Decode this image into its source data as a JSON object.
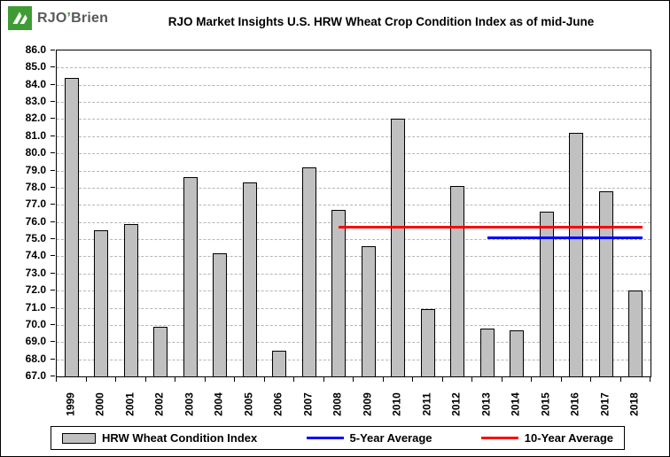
{
  "brand": {
    "primary": "RJO",
    "apostrophe": "’",
    "secondary": "Brien",
    "logo_icon": "rjo-green-square-icon",
    "accent_color": "#3f9c35"
  },
  "chart_data": {
    "type": "bar",
    "title": "RJO Market Insights U.S. HRW Wheat Crop Condition Index as of mid-June",
    "categories": [
      "1999",
      "2000",
      "2001",
      "2002",
      "2003",
      "2004",
      "2005",
      "2006",
      "2007",
      "2008",
      "2009",
      "2010",
      "2011",
      "2012",
      "2013",
      "2014",
      "2015",
      "2016",
      "2017",
      "2018"
    ],
    "values": [
      84.4,
      75.5,
      75.9,
      69.9,
      78.6,
      74.2,
      78.3,
      68.5,
      79.2,
      76.7,
      74.6,
      82.0,
      70.9,
      78.1,
      69.8,
      69.7,
      76.6,
      81.2,
      77.8,
      72.0
    ],
    "xlabel": "",
    "ylabel": "",
    "ylim": [
      67.0,
      86.0
    ],
    "ytick_step": 1.0,
    "ytick_decimals": 1,
    "grid": true,
    "gridline_style": "dashed",
    "bar_color": "#c0c0c0",
    "bar_border_color": "#000000",
    "overlays": [
      {
        "name": "5-Year Average",
        "value": 75.1,
        "start_category": "2013",
        "end_category": "2018",
        "color": "#0000ff"
      },
      {
        "name": "10-Year Average",
        "value": 75.7,
        "start_category": "2008",
        "end_category": "2018",
        "color": "#ff0000"
      }
    ],
    "legend_position": "bottom"
  },
  "legend": {
    "items": [
      {
        "label": "HRW Wheat Condition Index",
        "swatch": "bar",
        "color": "#c0c0c0"
      },
      {
        "label": "5-Year Average",
        "swatch": "line",
        "color": "#0000ff"
      },
      {
        "label": "10-Year Average",
        "swatch": "line",
        "color": "#ff0000"
      }
    ]
  }
}
